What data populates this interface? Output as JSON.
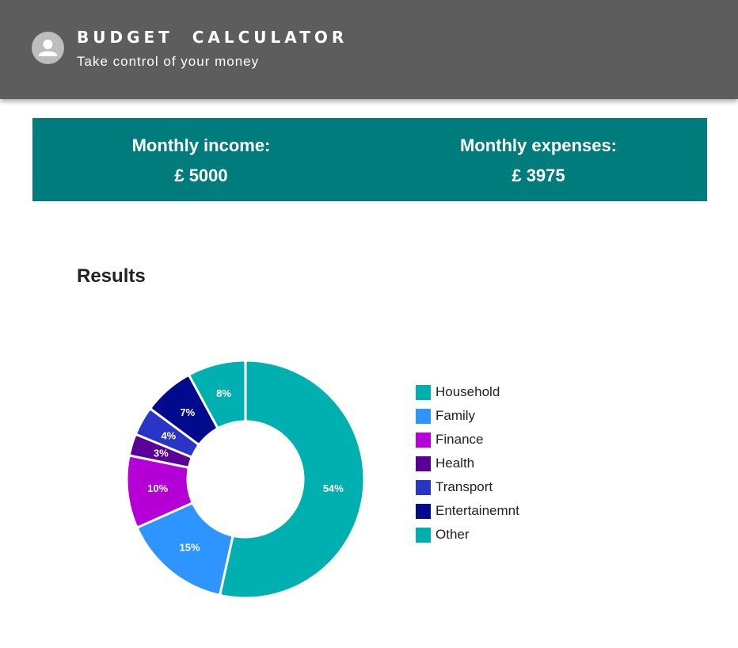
{
  "header": {
    "title": "BUDGET  CALCULATOR",
    "subtitle": "Take control of your money",
    "avatar_icon": "person-icon"
  },
  "summary": {
    "income_label": "Monthly income:",
    "income_value": "£ 5000",
    "expenses_label": "Monthly expenses:",
    "expenses_value": "£ 3975",
    "background_color": "#017c7c"
  },
  "results": {
    "title": "Results"
  },
  "chart_data": {
    "type": "pie",
    "categories": [
      "Household",
      "Family",
      "Finance",
      "Health",
      "Transport",
      "Entertainemnt",
      "Other"
    ],
    "values": [
      54,
      15,
      10,
      3,
      4,
      7,
      8
    ],
    "value_labels": [
      "54%",
      "15%",
      "10%",
      "3%",
      "4%",
      "7%",
      "8%"
    ],
    "colors": [
      "#00b0b0",
      "#2e94ff",
      "#b400d6",
      "#5a0099",
      "#2a35c8",
      "#000a8c",
      "#00b0b0"
    ],
    "legend_position": "right",
    "donut": true
  }
}
